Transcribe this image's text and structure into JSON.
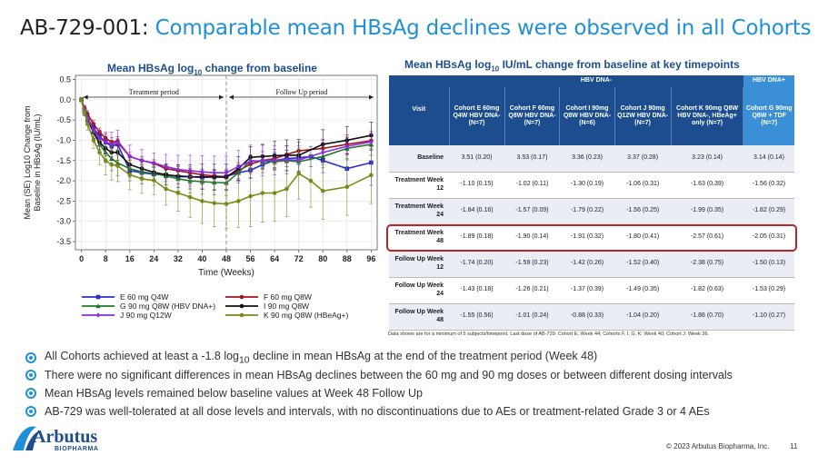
{
  "title": {
    "code": "AB-729-001:",
    "headline": "Comparable mean HBsAg declines were observed in all Cohorts"
  },
  "chart_title": {
    "pre": "Mean HBsAg log",
    "sub": "10",
    "post": " change from baseline"
  },
  "table_title": {
    "pre": "Mean HBsAg log",
    "sub": "10",
    "post": " IU/mL change from baseline at key timepoints"
  },
  "colors": {
    "accent": "#1f8fd6",
    "navy": "#1c4e8f",
    "highlight": "#b3262b"
  },
  "chart_data": {
    "type": "line",
    "xlabel": "Time (Weeks)",
    "ylabel": "Mean (SE) Log10 Change from Baseline in HBsAg (IU/mL)",
    "ylabel_lines": [
      "Mean (SE) Log10 Change from",
      "Baseline in HBsAg (IU/mL)"
    ],
    "xlim": [
      -2,
      98
    ],
    "ylim": [
      -3.7,
      0.6
    ],
    "xticks": [
      0,
      8,
      16,
      24,
      32,
      40,
      48,
      56,
      64,
      72,
      80,
      88,
      96
    ],
    "yticks": [
      0.5,
      0.0,
      -0.5,
      -1.0,
      -1.5,
      -2.0,
      -2.5,
      -3.0,
      -3.5
    ],
    "ytick_labels": [
      "0.5",
      "0.0",
      "-0.5",
      "-1.0",
      "-1.5",
      "-2.0",
      "-2.5",
      "-3.0",
      "-3.5"
    ],
    "phase_divider_x": 48,
    "phase_labels": [
      "Treatment period",
      "Follow Up period"
    ],
    "legend_position": "bottom",
    "series": [
      {
        "name": "E 60 mg Q4W",
        "color": "#2b2fc9",
        "marker": "square",
        "x": [
          0,
          1,
          2,
          4,
          6,
          8,
          10,
          12,
          16,
          20,
          24,
          28,
          32,
          36,
          40,
          44,
          48,
          52,
          56,
          60,
          64,
          68,
          72,
          76,
          80,
          88,
          96
        ],
        "y": [
          0,
          -0.25,
          -0.45,
          -0.7,
          -0.9,
          -1.05,
          -1.15,
          -1.1,
          -1.75,
          -1.8,
          -1.84,
          -1.85,
          -1.9,
          -1.9,
          -1.92,
          -1.9,
          -1.89,
          -1.8,
          -1.74,
          -1.6,
          -1.5,
          -1.45,
          -1.43,
          -1.4,
          -1.5,
          -1.7,
          -1.55
        ],
        "se": [
          0.05,
          0.08,
          0.1,
          0.12,
          0.15,
          0.15,
          0.15,
          0.15,
          0.16,
          0.16,
          0.16,
          0.17,
          0.17,
          0.17,
          0.17,
          0.18,
          0.18,
          0.18,
          0.2,
          0.2,
          0.2,
          0.2,
          0.18,
          0.25,
          0.3,
          0.45,
          0.56
        ]
      },
      {
        "name": "F 60 mg Q8W",
        "color": "#a3151d",
        "marker": "circle",
        "x": [
          0,
          1,
          2,
          4,
          6,
          8,
          10,
          12,
          16,
          20,
          24,
          28,
          32,
          36,
          40,
          44,
          48,
          52,
          56,
          60,
          64,
          68,
          72,
          80,
          88,
          96
        ],
        "y": [
          0,
          -0.2,
          -0.35,
          -0.6,
          -0.8,
          -0.95,
          -1.05,
          -1.02,
          -1.4,
          -1.5,
          -1.57,
          -1.7,
          -1.75,
          -1.8,
          -1.85,
          -1.88,
          -1.9,
          -1.75,
          -1.59,
          -1.5,
          -1.45,
          -1.35,
          -1.26,
          -1.2,
          -1.1,
          -1.01
        ],
        "se": [
          0.05,
          0.06,
          0.08,
          0.1,
          0.1,
          0.11,
          0.11,
          0.11,
          0.1,
          0.1,
          0.09,
          0.12,
          0.13,
          0.14,
          0.14,
          0.14,
          0.14,
          0.2,
          0.23,
          0.22,
          0.22,
          0.21,
          0.21,
          0.22,
          0.23,
          0.24
        ]
      },
      {
        "name": "G 90 mg Q8W (HBV DNA+)",
        "color": "#1f7a2e",
        "marker": "triangle",
        "x": [
          0,
          1,
          2,
          4,
          6,
          8,
          10,
          12,
          16,
          20,
          24,
          28,
          32,
          36,
          40,
          44,
          48,
          52,
          56,
          60,
          64,
          68,
          72,
          80,
          88,
          96
        ],
        "y": [
          0,
          -0.3,
          -0.5,
          -0.8,
          -1.1,
          -1.3,
          -1.45,
          -1.56,
          -1.7,
          -1.78,
          -1.82,
          -1.88,
          -1.95,
          -2.0,
          -2.02,
          -2.04,
          -2.05,
          -1.8,
          -1.5,
          -1.52,
          -1.53,
          -1.5,
          -1.53,
          -1.4,
          -1.2,
          -1.1
        ],
        "se": [
          0.05,
          0.08,
          0.1,
          0.15,
          0.2,
          0.25,
          0.3,
          0.32,
          0.3,
          0.3,
          0.29,
          0.3,
          0.3,
          0.3,
          0.31,
          0.31,
          0.31,
          0.2,
          0.13,
          0.15,
          0.2,
          0.25,
          0.29,
          0.28,
          0.28,
          0.27
        ]
      },
      {
        "name": "I 90 mg Q8W",
        "color": "#111111",
        "marker": "circle",
        "x": [
          0,
          1,
          2,
          4,
          6,
          8,
          10,
          12,
          16,
          20,
          24,
          28,
          32,
          36,
          40,
          44,
          48,
          52,
          56,
          60,
          64,
          68,
          72,
          80,
          88,
          96
        ],
        "y": [
          0,
          -0.3,
          -0.5,
          -0.8,
          -1.05,
          -1.2,
          -1.3,
          -1.3,
          -1.6,
          -1.7,
          -1.79,
          -1.85,
          -1.88,
          -1.9,
          -1.9,
          -1.91,
          -1.91,
          -1.7,
          -1.42,
          -1.4,
          -1.38,
          -1.37,
          -1.37,
          -1.1,
          -1.0,
          -0.88
        ],
        "se": [
          0.05,
          0.08,
          0.1,
          0.15,
          0.18,
          0.19,
          0.19,
          0.19,
          0.2,
          0.21,
          0.22,
          0.25,
          0.28,
          0.3,
          0.31,
          0.32,
          0.32,
          0.3,
          0.26,
          0.3,
          0.35,
          0.38,
          0.39,
          0.36,
          0.34,
          0.33
        ]
      },
      {
        "name": "J 90 mg Q12W",
        "color": "#8a2be2",
        "marker": "diamond",
        "x": [
          0,
          1,
          2,
          4,
          6,
          8,
          10,
          12,
          16,
          20,
          24,
          28,
          32,
          36,
          40,
          44,
          48,
          52,
          56,
          60,
          64,
          68,
          72,
          80,
          88,
          96
        ],
        "y": [
          0,
          -0.25,
          -0.45,
          -0.75,
          -0.95,
          -1.05,
          -1.1,
          -1.06,
          -1.4,
          -1.5,
          -1.56,
          -1.65,
          -1.72,
          -1.75,
          -1.78,
          -1.8,
          -1.8,
          -1.65,
          -1.52,
          -1.5,
          -1.49,
          -1.48,
          -1.49,
          -1.3,
          -1.15,
          -1.04
        ],
        "se": [
          0.05,
          0.08,
          0.1,
          0.15,
          0.2,
          0.25,
          0.3,
          0.31,
          0.28,
          0.27,
          0.25,
          0.3,
          0.35,
          0.38,
          0.4,
          0.41,
          0.41,
          0.4,
          0.4,
          0.38,
          0.36,
          0.35,
          0.35,
          0.3,
          0.22,
          0.2
        ]
      },
      {
        "name": "K 90 mg Q8W (HBeAg+)",
        "color": "#7a8a1a",
        "marker": "circle",
        "x": [
          0,
          1,
          2,
          4,
          6,
          8,
          10,
          12,
          16,
          20,
          24,
          28,
          32,
          36,
          40,
          44,
          48,
          52,
          56,
          60,
          64,
          68,
          72,
          76,
          80,
          88,
          96
        ],
        "y": [
          0,
          -0.3,
          -0.6,
          -1.0,
          -1.3,
          -1.5,
          -1.6,
          -1.63,
          -1.85,
          -1.95,
          -1.99,
          -2.2,
          -2.3,
          -2.4,
          -2.5,
          -2.55,
          -2.57,
          -2.5,
          -2.38,
          -2.3,
          -2.3,
          -2.2,
          -1.82,
          -2.0,
          -2.25,
          -2.15,
          -1.86
        ],
        "se": [
          0.05,
          0.1,
          0.15,
          0.2,
          0.3,
          0.35,
          0.38,
          0.39,
          0.37,
          0.36,
          0.35,
          0.4,
          0.45,
          0.5,
          0.55,
          0.58,
          0.61,
          0.65,
          0.75,
          0.72,
          0.7,
          0.68,
          0.63,
          0.65,
          0.7,
          0.7,
          0.7
        ]
      }
    ]
  },
  "table": {
    "visit_label": "Visit",
    "group_neg": "HBV DNA-",
    "group_pos": "HBV DNA+",
    "columns": [
      "Cohort E 60mg Q4W HBV DNA- (N=7)",
      "Cohort F 60mg Q8W HBV DNA- (N=7)",
      "Cohort I 90mg Q8W HBV DNA- (N=6)",
      "Cohort J 90mg Q12W HBV DNA- (N=7)",
      "Cohort K 90mg Q8W HBV DNA-, HBeAg+ only (N=7)",
      "Cohort G 90mg Q8W + TDF (N=7)"
    ],
    "rows": [
      {
        "label": "Baseline",
        "cells": [
          "3.51 (0.20)",
          "3.53 (0.17)",
          "3.36 (0.23)",
          "3.37 (0.28)",
          "3.23 (0.14)",
          "3.14 (0.14)"
        ]
      },
      {
        "label": "Treatment Week 12",
        "cells": [
          "-1.10 (0.15)",
          "-1.02 (0.11)",
          "-1.30 (0.19)",
          "-1.06 (0.31)",
          "-1.63 (0.39)",
          "-1.56 (0.32)"
        ]
      },
      {
        "label": "Treatment Week 24",
        "cells": [
          "-1.84 (0.16)",
          "-1.57 (0.09)",
          "-1.79 (0.22)",
          "-1.56 (0.25)",
          "-1.99 (0.35)",
          "-1.82 (0.29)"
        ]
      },
      {
        "label": "Treatment Week 48",
        "cells": [
          "-1.89 (0.18)",
          "-1.90 (0.14)",
          "-1.91 (0.32)",
          "-1.80 (0.41)",
          "-2.57 (0.61)",
          "-2.05 (0.31)"
        ]
      },
      {
        "label": "Follow Up Week 12",
        "cells": [
          "-1.74 (0.20)",
          "-1.59 (0.23)",
          "-1.42 (0.26)",
          "-1.52 (0.40)",
          "-2.38 (0.75)",
          "-1.50 (0.13)"
        ]
      },
      {
        "label": "Follow Up Week 24",
        "cells": [
          "-1.43 (0.18)",
          "-1.26 (0.21)",
          "-1.37 (0.39)",
          "-1.49 (0.35)",
          "-1.82 (0.63)",
          "-1.53 (0.29)"
        ]
      },
      {
        "label": "Follow Up Week 48",
        "cells": [
          "-1.55 (0.56)",
          "-1.01 (0.24)",
          "-0.88 (0.33)",
          "-1.04 (0.20)",
          "-1.86 (0.70)",
          "-1.10 (0.27)"
        ]
      }
    ],
    "footnote": "Data shown are for a minimum of 5 subjects/timepoint. Last dose of AB-729: Cohort E, Week 44; Cohorts F, I, G, K: Week 40; Cohort J: Week 36."
  },
  "bullets": [
    {
      "pre": "All Cohorts achieved at least a -1.8 log",
      "sub": "10",
      "post": " decline in mean HBsAg at the end of the treatment period (Week 48)"
    },
    {
      "pre": "There were no significant differences in mean HBsAg declines between the 60 mg and 90 mg doses or between different dosing intervals",
      "sub": "",
      "post": ""
    },
    {
      "pre": "Mean HBsAg levels remained below baseline values at Week 48 Follow Up",
      "sub": "",
      "post": ""
    },
    {
      "pre": "AB-729 was well-tolerated at all dose levels and intervals, with no discontinuations due to AEs or treatment-related Grade 3 or 4 AEs",
      "sub": "",
      "post": ""
    }
  ],
  "logo": {
    "name": "Arbutus",
    "sub": "BIOPHARMA"
  },
  "footer": {
    "copyright": "© 2023 Arbutus Biopharma, Inc.",
    "page": "11"
  }
}
